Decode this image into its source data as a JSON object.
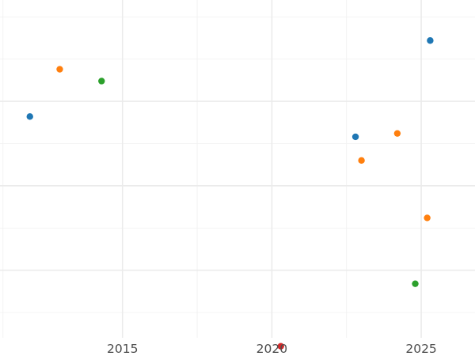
{
  "chart_data": {
    "type": "scatter",
    "title": "",
    "xlabel": "",
    "ylabel": "",
    "xlim": [
      2010.9,
      2026.8
    ],
    "ylim": [
      1,
      21
    ],
    "x_ticks": [
      2015,
      2020,
      2025
    ],
    "x_tick_labels": [
      "2015",
      "2020",
      "2025"
    ],
    "y_major_ticks": [
      5,
      10,
      15
    ],
    "y_minor_ticks": [
      2.5,
      7.5,
      12.5,
      17.5,
      20
    ],
    "grid": true,
    "legend": "none",
    "series": [
      {
        "color": "#1f77b4",
        "points": [
          {
            "x": 2011.9,
            "y": 14.1
          },
          {
            "x": 2022.8,
            "y": 12.9
          },
          {
            "x": 2025.3,
            "y": 18.6
          }
        ]
      },
      {
        "color": "#ff7f0e",
        "points": [
          {
            "x": 2012.9,
            "y": 16.9
          },
          {
            "x": 2023.0,
            "y": 11.5
          },
          {
            "x": 2024.2,
            "y": 13.1
          },
          {
            "x": 2025.2,
            "y": 8.1
          }
        ]
      },
      {
        "color": "#2ca02c",
        "points": [
          {
            "x": 2014.3,
            "y": 16.2
          },
          {
            "x": 2024.8,
            "y": 4.2
          }
        ]
      },
      {
        "color": "#d62728",
        "points": [
          {
            "x": 2020.3,
            "y": 0.5
          }
        ]
      }
    ]
  }
}
